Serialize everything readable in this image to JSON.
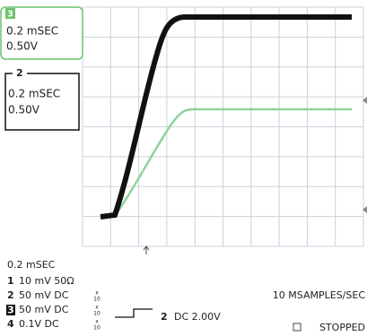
{
  "channel_boxes": [
    {
      "channel": "3",
      "timebase": "0.2 mSEC",
      "volts": "0.50V"
    },
    {
      "channel": "2",
      "timebase": "0.2 mSEC",
      "volts": "0.50V"
    }
  ],
  "timebase": "0.2 mSEC",
  "channels": [
    {
      "number": "1",
      "setting": "10 mV 50Ω"
    },
    {
      "number": "2",
      "setting": "50 mV DC",
      "probe": {
        "top": "x",
        "bottom": "10"
      }
    },
    {
      "number": "3",
      "setting": "50 mV DC",
      "probe": {
        "top": "x",
        "bottom": "10"
      }
    },
    {
      "number": "4",
      "setting": "0.1V DC",
      "probe": {
        "top": "x",
        "bottom": "10"
      }
    }
  ],
  "trigger": {
    "channel": "2",
    "setting": "DC 2.00V"
  },
  "sample_rate": "10 MSAMPLES/SEC",
  "status": "STOPPED"
}
